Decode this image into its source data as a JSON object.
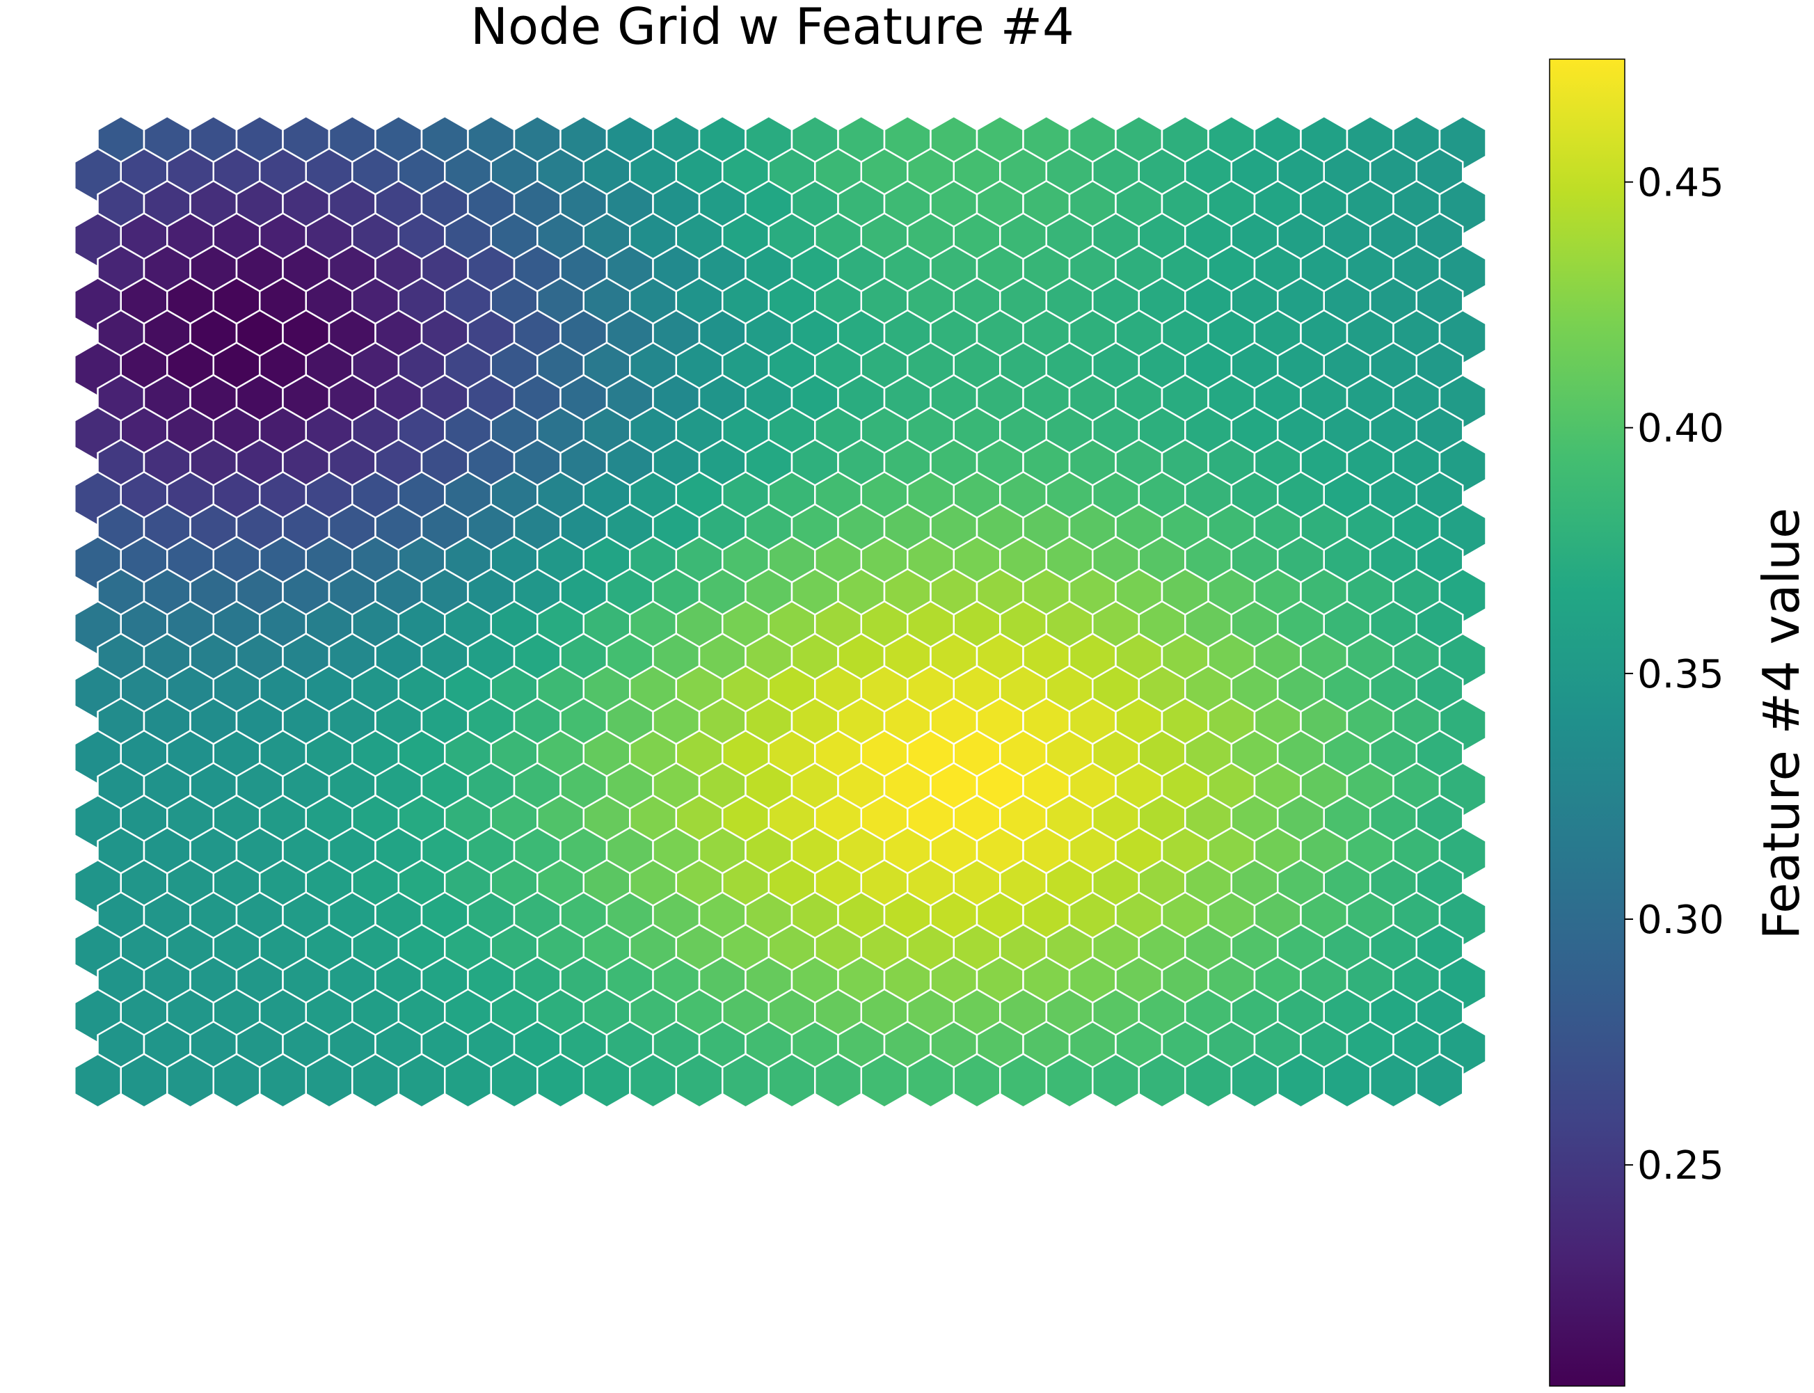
{
  "chart_data": {
    "type": "heatmap",
    "subtype": "hexagonal-som-node-grid",
    "title": "Node Grid w Feature #4",
    "xlabel": "",
    "ylabel": "",
    "colorbar": {
      "label": "Feature #4 value",
      "colormap": "viridis",
      "range": [
        0.205,
        0.475
      ],
      "ticks": [
        0.25,
        0.3,
        0.35,
        0.4,
        0.45
      ],
      "tick_labels": [
        "0.25",
        "0.30",
        "0.35",
        "0.40",
        "0.45"
      ]
    },
    "grid": {
      "columns": 30,
      "rows": 30,
      "cell_edge_color": "#ffffff"
    },
    "value_field": {
      "description": "sum of peaks",
      "base": 0.345,
      "peaks": [
        {
          "col": 3.0,
          "row": 6.2,
          "amplitude": -0.14,
          "spread": 5.5
        },
        {
          "col": 18.3,
          "row": 19.8,
          "amplitude": 0.13,
          "spread": 6.5
        },
        {
          "col": 18.0,
          "row": 0.0,
          "amplitude": 0.05,
          "spread": 5.0
        }
      ]
    },
    "grid_on": false,
    "legend": "colorbar-right"
  }
}
